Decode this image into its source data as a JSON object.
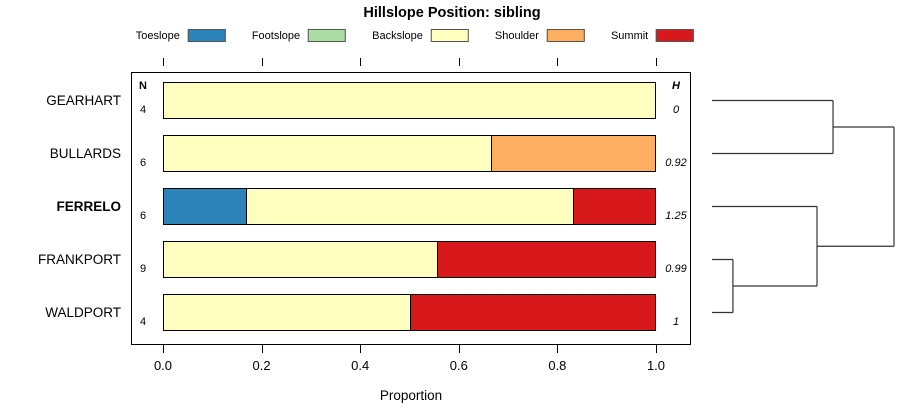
{
  "title": "Hillslope Position: sibling",
  "legend": {
    "items": [
      {
        "label": "Toeslope",
        "color": "#2B83BA"
      },
      {
        "label": "Footslope",
        "color": "#ABDDA4"
      },
      {
        "label": "Backslope",
        "color": "#FFFFBF"
      },
      {
        "label": "Shoulder",
        "color": "#FDAE61"
      },
      {
        "label": "Summit",
        "color": "#D7191C"
      }
    ]
  },
  "columns": {
    "n_header": "N",
    "h_header": "H"
  },
  "x_axis": {
    "label": "Proportion",
    "ticks": [
      "0.0",
      "0.2",
      "0.4",
      "0.6",
      "0.8",
      "1.0"
    ],
    "range": [
      0,
      1
    ]
  },
  "chart_data": {
    "type": "bar",
    "subtype": "horizontal-stacked-proportion",
    "title": "Hillslope Position: sibling",
    "xlabel": "Proportion",
    "xlim": [
      0,
      1
    ],
    "grid": false,
    "legend_position": "top",
    "categories": [
      "GEARHART",
      "BULLARDS",
      "FERRELO",
      "FRANKPORT",
      "WALDPORT"
    ],
    "emphasized_category": "FERRELO",
    "N": [
      4,
      6,
      6,
      9,
      4
    ],
    "H": [
      "0",
      "0.92",
      "1.25",
      "0.99",
      "1"
    ],
    "series": [
      {
        "name": "Toeslope",
        "values": [
          0,
          0,
          0.167,
          0,
          0
        ]
      },
      {
        "name": "Footslope",
        "values": [
          0,
          0,
          0,
          0,
          0
        ]
      },
      {
        "name": "Backslope",
        "values": [
          1,
          0.667,
          0.666,
          0.556,
          0.5
        ]
      },
      {
        "name": "Shoulder",
        "values": [
          0,
          0.333,
          0,
          0,
          0
        ]
      },
      {
        "name": "Summit",
        "values": [
          0,
          0,
          0.167,
          0.444,
          0.5
        ]
      }
    ]
  },
  "dendrogram": {
    "side": "right",
    "merges": [
      {
        "children": [
          "FRANKPORT",
          "WALDPORT"
        ],
        "height": 0.115
      },
      {
        "children": [
          "FERRELO",
          "FRANKPORT+WALDPORT"
        ],
        "height": 0.577
      },
      {
        "children": [
          "GEARHART",
          "BULLARDS"
        ],
        "height": 0.665
      },
      {
        "children": [
          "GEARHART+BULLARDS",
          "FERRELO+FRANKPORT+WALDPORT"
        ],
        "height": 1.0
      }
    ]
  }
}
